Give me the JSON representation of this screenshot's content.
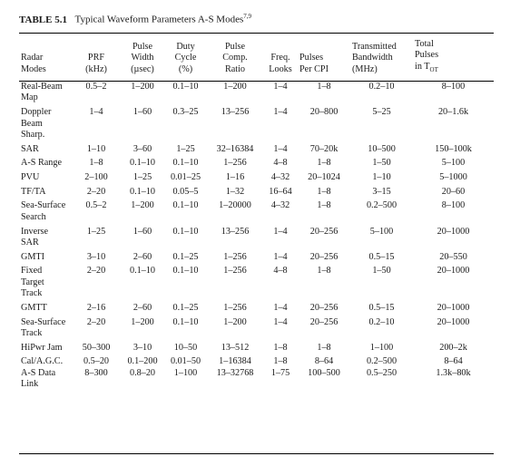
{
  "caption": {
    "number": "TABLE 5.1",
    "title": "Typical Waveform Parameters A-S Modes",
    "superscript": "7,9"
  },
  "headers": [
    [
      "Radar",
      "Modes"
    ],
    [
      "PRF",
      "(kHz)"
    ],
    [
      "Pulse",
      "Width",
      "(µsec)"
    ],
    [
      "Duty",
      "Cycle",
      "(%)"
    ],
    [
      "Pulse",
      "Comp.",
      "Ratio"
    ],
    [
      "Freq.",
      "Looks"
    ],
    [
      "Pulses",
      "Per CPI"
    ],
    [
      "Transmitted",
      "Bandwidth",
      "(MHz)"
    ],
    [
      "Total",
      "Pulses",
      "in T"
    ]
  ],
  "header_last_subscript": "OT",
  "rows": [
    [
      [
        "Real-Beam",
        "Map"
      ],
      "0.5–2",
      "1–200",
      "0.1–10",
      "1–200",
      "1–4",
      "1–8",
      "0.2–10",
      "8–100"
    ],
    [
      [
        "Doppler",
        "Beam",
        "Sharp."
      ],
      "1–4",
      "1–60",
      "0.3–25",
      "13–256",
      "1–4",
      "20–800",
      "5–25",
      "20–1.6k"
    ],
    [
      [
        "SAR"
      ],
      "1–10",
      "3–60",
      "1–25",
      "32–16384",
      "1–4",
      "70–20k",
      "10–500",
      "150–100k"
    ],
    [
      [
        "A-S Range"
      ],
      "1–8",
      "0.1–10",
      "0.1–10",
      "1–256",
      "4–8",
      "1–8",
      "1–50",
      "5–100"
    ],
    [
      [
        "PVU"
      ],
      "2–100",
      "1–25",
      "0.01–25",
      "1–16",
      "4–32",
      "20–1024",
      "1–10",
      "5–1000"
    ],
    [
      [
        "TF/TA"
      ],
      "2–20",
      "0.1–10",
      "0.05–5",
      "1–32",
      "16–64",
      "1–8",
      "3–15",
      "20–60"
    ],
    [
      [
        "Sea-Surface",
        "Search"
      ],
      "0.5–2",
      "1–200",
      "0.1–10",
      "1–20000",
      "4–32",
      "1–8",
      "0.2–500",
      "8–100"
    ],
    [
      [
        "Inverse",
        "SAR"
      ],
      "1–25",
      "1–60",
      "0.1–10",
      "13–256",
      "1–4",
      "20–256",
      "5–100",
      "20–1000"
    ],
    [
      [
        "GMTI"
      ],
      "3–10",
      "2–60",
      "0.1–25",
      "1–256",
      "1–4",
      "20–256",
      "0.5–15",
      "20–550"
    ],
    [
      [
        "Fixed",
        "Target",
        "Track"
      ],
      "2–20",
      "0.1–10",
      "0.1–10",
      "1–256",
      "4–8",
      "1–8",
      "1–50",
      "20–1000"
    ],
    [
      [
        "GMTT"
      ],
      "2–16",
      "2–60",
      "0.1–25",
      "1–256",
      "1–4",
      "20–256",
      "0.5–15",
      "20–1000"
    ],
    [
      [
        "Sea-Surface",
        "Track"
      ],
      "2–20",
      "1–200",
      "0.1–10",
      "1–200",
      "1–4",
      "20–256",
      "0.2–10",
      "20–1000"
    ],
    [
      [
        "HiPwr Jam"
      ],
      "50–300",
      "3–10",
      "10–50",
      "13–512",
      "1–8",
      "1–8",
      "1–100",
      "200–2k"
    ],
    [
      [
        "Cal/A.G.C.",
        "A-S Data",
        "Link"
      ],
      "0.5–20\n8–300",
      "0.1–200\n0.8–20",
      "0.01–50\n1–100",
      "1–16384\n13–32768",
      "1–8\n1–75",
      "8–64\n100–500",
      "0.2–500\n0.5–250",
      "8–64\n1.3k–80k"
    ]
  ]
}
